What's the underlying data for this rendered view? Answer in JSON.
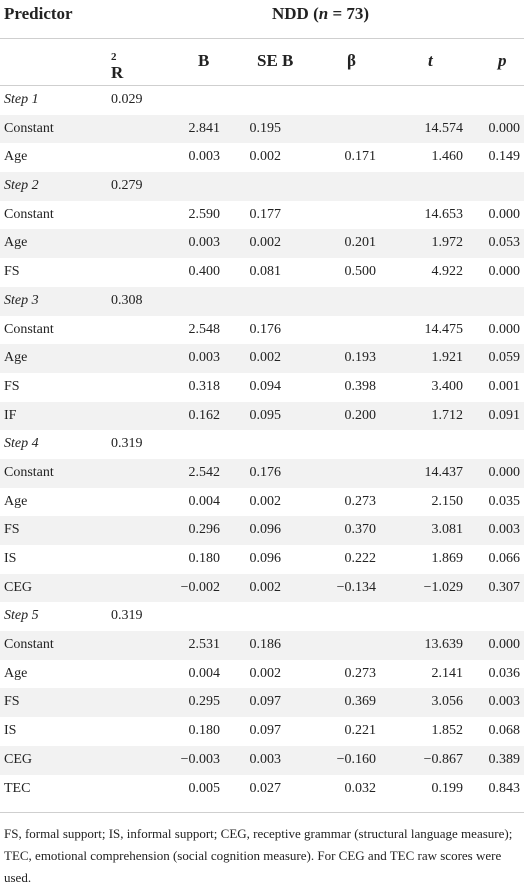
{
  "header": {
    "predictor": "Predictor",
    "group_prefix": "NDD (",
    "group_n": "n",
    "group_suffix": " = 73)",
    "columns": {
      "r2_base": "R",
      "r2_sup": "2",
      "b": "B",
      "seb": "SE B",
      "beta": "β",
      "t": "t",
      "p": "p"
    }
  },
  "rows": [
    {
      "label": "Step 1",
      "step": true,
      "r2": "0.029",
      "b": "",
      "seb": "",
      "beta": "",
      "t": "",
      "p": ""
    },
    {
      "label": "Constant",
      "step": false,
      "r2": "",
      "b": "2.841",
      "seb": "0.195",
      "beta": "",
      "t": "14.574",
      "p": "0.000"
    },
    {
      "label": "Age",
      "step": false,
      "r2": "",
      "b": "0.003",
      "seb": "0.002",
      "beta": "0.171",
      "t": "1.460",
      "p": "0.149"
    },
    {
      "label": "Step 2",
      "step": true,
      "r2": "0.279",
      "b": "",
      "seb": "",
      "beta": "",
      "t": "",
      "p": ""
    },
    {
      "label": "Constant",
      "step": false,
      "r2": "",
      "b": "2.590",
      "seb": "0.177",
      "beta": "",
      "t": "14.653",
      "p": "0.000"
    },
    {
      "label": "Age",
      "step": false,
      "r2": "",
      "b": "0.003",
      "seb": "0.002",
      "beta": "0.201",
      "t": "1.972",
      "p": "0.053"
    },
    {
      "label": "FS",
      "step": false,
      "r2": "",
      "b": "0.400",
      "seb": "0.081",
      "beta": "0.500",
      "t": "4.922",
      "p": "0.000"
    },
    {
      "label": "Step 3",
      "step": true,
      "r2": "0.308",
      "b": "",
      "seb": "",
      "beta": "",
      "t": "",
      "p": ""
    },
    {
      "label": "Constant",
      "step": false,
      "r2": "",
      "b": "2.548",
      "seb": "0.176",
      "beta": "",
      "t": "14.475",
      "p": "0.000"
    },
    {
      "label": "Age",
      "step": false,
      "r2": "",
      "b": "0.003",
      "seb": "0.002",
      "beta": "0.193",
      "t": "1.921",
      "p": "0.059"
    },
    {
      "label": "FS",
      "step": false,
      "r2": "",
      "b": "0.318",
      "seb": "0.094",
      "beta": "0.398",
      "t": "3.400",
      "p": "0.001"
    },
    {
      "label": "IF",
      "step": false,
      "r2": "",
      "b": "0.162",
      "seb": "0.095",
      "beta": "0.200",
      "t": "1.712",
      "p": "0.091"
    },
    {
      "label": "Step 4",
      "step": true,
      "r2": "0.319",
      "b": "",
      "seb": "",
      "beta": "",
      "t": "",
      "p": ""
    },
    {
      "label": "Constant",
      "step": false,
      "r2": "",
      "b": "2.542",
      "seb": "0.176",
      "beta": "",
      "t": "14.437",
      "p": "0.000"
    },
    {
      "label": "Age",
      "step": false,
      "r2": "",
      "b": "0.004",
      "seb": "0.002",
      "beta": "0.273",
      "t": "2.150",
      "p": "0.035"
    },
    {
      "label": "FS",
      "step": false,
      "r2": "",
      "b": "0.296",
      "seb": "0.096",
      "beta": "0.370",
      "t": "3.081",
      "p": "0.003"
    },
    {
      "label": "IS",
      "step": false,
      "r2": "",
      "b": "0.180",
      "seb": "0.096",
      "beta": "0.222",
      "t": "1.869",
      "p": "0.066"
    },
    {
      "label": "CEG",
      "step": false,
      "r2": "",
      "b": "−0.002",
      "seb": "0.002",
      "beta": "−0.134",
      "t": "−1.029",
      "p": "0.307"
    },
    {
      "label": "Step 5",
      "step": true,
      "r2": "0.319",
      "b": "",
      "seb": "",
      "beta": "",
      "t": "",
      "p": ""
    },
    {
      "label": "Constant",
      "step": false,
      "r2": "",
      "b": "2.531",
      "seb": "0.186",
      "beta": "",
      "t": "13.639",
      "p": "0.000"
    },
    {
      "label": "Age",
      "step": false,
      "r2": "",
      "b": "0.004",
      "seb": "0.002",
      "beta": "0.273",
      "t": "2.141",
      "p": "0.036"
    },
    {
      "label": "FS",
      "step": false,
      "r2": "",
      "b": "0.295",
      "seb": "0.097",
      "beta": "0.369",
      "t": "3.056",
      "p": "0.003"
    },
    {
      "label": "IS",
      "step": false,
      "r2": "",
      "b": "0.180",
      "seb": "0.097",
      "beta": "0.221",
      "t": "1.852",
      "p": "0.068"
    },
    {
      "label": "CEG",
      "step": false,
      "r2": "",
      "b": "−0.003",
      "seb": "0.003",
      "beta": "−0.160",
      "t": "−0.867",
      "p": "0.389"
    },
    {
      "label": "TEC",
      "step": false,
      "r2": "",
      "b": "0.005",
      "seb": "0.027",
      "beta": "0.032",
      "t": "0.199",
      "p": "0.843"
    }
  ],
  "footnote": "FS, formal support; IS, informal support; CEG, receptive grammar (structural language measure); TEC, emotional comprehension (social cognition measure). For CEG and TEC raw scores were used.",
  "colors": {
    "shade": "#f2f2f2",
    "rule": "#cfcfcf",
    "text": "#222222"
  }
}
